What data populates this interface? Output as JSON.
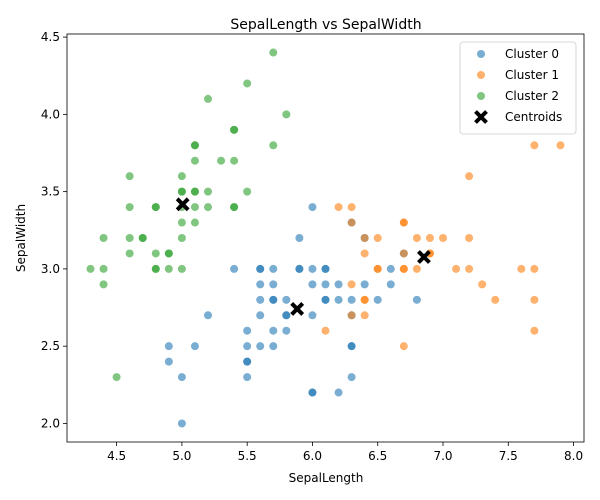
{
  "chart_data": {
    "type": "scatter",
    "title": "SepalLength vs SepalWidth",
    "xlabel": "SepalLength",
    "ylabel": "SepalWidth",
    "xlim": [
      4.12,
      8.08
    ],
    "ylim": [
      1.88,
      4.52
    ],
    "xticks": [
      4.5,
      5.0,
      5.5,
      6.0,
      6.5,
      7.0,
      7.5,
      8.0
    ],
    "xtick_labels": [
      "4.5",
      "5.0",
      "5.5",
      "6.0",
      "6.5",
      "7.0",
      "7.5",
      "8.0"
    ],
    "yticks": [
      2.0,
      2.5,
      3.0,
      3.5,
      4.0,
      4.5
    ],
    "ytick_labels": [
      "2.0",
      "2.5",
      "3.0",
      "3.5",
      "4.0",
      "4.5"
    ],
    "grid": false,
    "legend_position": "top-right",
    "series": [
      {
        "name": "Cluster 0",
        "color": "#1f77b4",
        "points": [
          [
            5.4,
            3.0
          ],
          [
            5.6,
            3.0
          ],
          [
            5.6,
            3.0
          ],
          [
            5.7,
            3.0
          ],
          [
            5.9,
            3.0
          ],
          [
            5.9,
            3.0
          ],
          [
            6.0,
            3.0
          ],
          [
            6.1,
            3.0
          ],
          [
            6.1,
            3.0
          ],
          [
            6.6,
            3.0
          ],
          [
            5.6,
            2.9
          ],
          [
            5.7,
            2.9
          ],
          [
            6.0,
            2.9
          ],
          [
            6.1,
            2.9
          ],
          [
            6.2,
            2.9
          ],
          [
            6.4,
            2.9
          ],
          [
            6.6,
            2.9
          ],
          [
            5.6,
            2.8
          ],
          [
            5.7,
            2.8
          ],
          [
            5.7,
            2.8
          ],
          [
            5.8,
            2.8
          ],
          [
            6.1,
            2.8
          ],
          [
            6.1,
            2.8
          ],
          [
            6.2,
            2.8
          ],
          [
            6.3,
            2.8
          ],
          [
            6.5,
            2.8
          ],
          [
            6.8,
            2.8
          ],
          [
            5.2,
            2.7
          ],
          [
            5.6,
            2.7
          ],
          [
            5.8,
            2.7
          ],
          [
            5.8,
            2.7
          ],
          [
            6.0,
            2.7
          ],
          [
            6.3,
            2.7
          ],
          [
            5.5,
            2.6
          ],
          [
            5.7,
            2.6
          ],
          [
            5.8,
            2.6
          ],
          [
            4.9,
            2.5
          ],
          [
            5.1,
            2.5
          ],
          [
            5.5,
            2.5
          ],
          [
            5.6,
            2.5
          ],
          [
            5.7,
            2.5
          ],
          [
            6.3,
            2.5
          ],
          [
            6.3,
            2.5
          ],
          [
            4.9,
            2.4
          ],
          [
            5.5,
            2.4
          ],
          [
            5.5,
            2.4
          ],
          [
            5.0,
            2.3
          ],
          [
            5.5,
            2.3
          ],
          [
            6.3,
            2.3
          ],
          [
            6.0,
            2.2
          ],
          [
            6.0,
            2.2
          ],
          [
            6.2,
            2.2
          ],
          [
            5.0,
            2.0
          ],
          [
            6.0,
            3.4
          ],
          [
            5.9,
            3.2
          ],
          [
            6.3,
            3.3
          ],
          [
            6.4,
            3.2
          ],
          [
            6.7,
            3.1
          ]
        ]
      },
      {
        "name": "Cluster 1",
        "color": "#ff7f0e",
        "points": [
          [
            7.7,
            3.8
          ],
          [
            7.9,
            3.8
          ],
          [
            7.2,
            3.6
          ],
          [
            6.2,
            3.4
          ],
          [
            6.3,
            3.4
          ],
          [
            6.3,
            3.3
          ],
          [
            6.7,
            3.3
          ],
          [
            6.7,
            3.3
          ],
          [
            6.4,
            3.2
          ],
          [
            6.5,
            3.2
          ],
          [
            6.8,
            3.2
          ],
          [
            6.9,
            3.2
          ],
          [
            7.0,
            3.2
          ],
          [
            7.2,
            3.2
          ],
          [
            6.4,
            3.1
          ],
          [
            6.7,
            3.1
          ],
          [
            6.9,
            3.1
          ],
          [
            6.9,
            3.1
          ],
          [
            6.5,
            3.0
          ],
          [
            6.5,
            3.0
          ],
          [
            6.7,
            3.0
          ],
          [
            6.7,
            3.0
          ],
          [
            6.8,
            3.0
          ],
          [
            7.1,
            3.0
          ],
          [
            7.2,
            3.0
          ],
          [
            7.6,
            3.0
          ],
          [
            7.7,
            3.0
          ],
          [
            6.3,
            2.9
          ],
          [
            7.3,
            2.9
          ],
          [
            6.4,
            2.8
          ],
          [
            6.4,
            2.8
          ],
          [
            7.4,
            2.8
          ],
          [
            7.7,
            2.8
          ],
          [
            6.3,
            2.7
          ],
          [
            6.4,
            2.7
          ],
          [
            6.1,
            2.6
          ],
          [
            7.7,
            2.6
          ],
          [
            6.7,
            2.5
          ]
        ]
      },
      {
        "name": "Cluster 2",
        "color": "#2ca02c",
        "points": [
          [
            5.7,
            4.4
          ],
          [
            5.5,
            4.2
          ],
          [
            5.2,
            4.1
          ],
          [
            5.8,
            4.0
          ],
          [
            5.4,
            3.9
          ],
          [
            5.4,
            3.9
          ],
          [
            5.1,
            3.8
          ],
          [
            5.1,
            3.8
          ],
          [
            5.7,
            3.8
          ],
          [
            5.1,
            3.7
          ],
          [
            5.3,
            3.7
          ],
          [
            5.4,
            3.7
          ],
          [
            4.6,
            3.6
          ],
          [
            5.0,
            3.6
          ],
          [
            5.0,
            3.5
          ],
          [
            5.0,
            3.5
          ],
          [
            5.1,
            3.5
          ],
          [
            5.1,
            3.5
          ],
          [
            5.2,
            3.5
          ],
          [
            5.5,
            3.5
          ],
          [
            4.6,
            3.4
          ],
          [
            4.8,
            3.4
          ],
          [
            4.8,
            3.4
          ],
          [
            5.0,
            3.4
          ],
          [
            5.1,
            3.4
          ],
          [
            5.2,
            3.4
          ],
          [
            5.4,
            3.4
          ],
          [
            5.4,
            3.4
          ],
          [
            5.0,
            3.3
          ],
          [
            5.1,
            3.3
          ],
          [
            4.4,
            3.2
          ],
          [
            4.6,
            3.2
          ],
          [
            4.7,
            3.2
          ],
          [
            4.7,
            3.2
          ],
          [
            5.0,
            3.2
          ],
          [
            4.6,
            3.1
          ],
          [
            4.8,
            3.1
          ],
          [
            4.9,
            3.1
          ],
          [
            4.9,
            3.1
          ],
          [
            4.3,
            3.0
          ],
          [
            4.4,
            3.0
          ],
          [
            4.8,
            3.0
          ],
          [
            4.8,
            3.0
          ],
          [
            4.9,
            3.0
          ],
          [
            5.0,
            3.0
          ],
          [
            4.4,
            2.9
          ],
          [
            4.5,
            2.3
          ]
        ]
      }
    ],
    "centroids": {
      "name": "Centroids",
      "color": "#000000",
      "points": [
        [
          5.006,
          3.418
        ],
        [
          5.883,
          2.741
        ],
        [
          6.854,
          3.077
        ]
      ]
    }
  }
}
